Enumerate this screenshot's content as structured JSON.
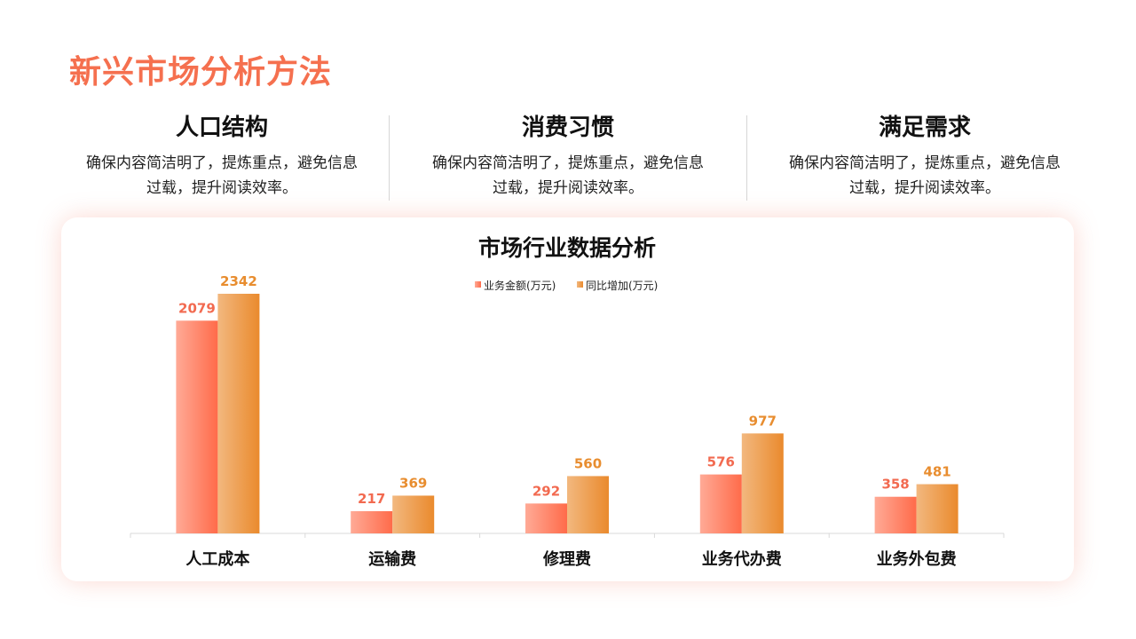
{
  "page_title": "新兴市场分析方法",
  "features": [
    {
      "heading": "人口结构",
      "text": "确保内容简洁明了，提炼重点，避免信息过载，提升阅读效率。"
    },
    {
      "heading": "消费习惯",
      "text": "确保内容简洁明了，提炼重点，避免信息过载，提升阅读效率。"
    },
    {
      "heading": "满足需求",
      "text": "确保内容简洁明了，提炼重点，避免信息过载，提升阅读效率。"
    }
  ],
  "colors": {
    "accent": "#f5704f",
    "series1_light": "#ffaa96",
    "series1_dark": "#ff6b4a",
    "series2_light": "#f2b87f",
    "series2_dark": "#ea8a2d",
    "label1": "#f26a50",
    "label2": "#e88d2f"
  },
  "chart_data": {
    "type": "bar",
    "title": "市场行业数据分析",
    "categories": [
      "人工成本",
      "运输费",
      "修理费",
      "业务代办费",
      "业务外包费"
    ],
    "series": [
      {
        "name": "业务金额(万元)",
        "values": [
          2079,
          217,
          292,
          576,
          358
        ]
      },
      {
        "name": "同比增加(万元)",
        "values": [
          2342,
          369,
          560,
          977,
          481
        ]
      }
    ],
    "ylim": [
      0,
      2342
    ],
    "grid": false,
    "legend_position": "top-center",
    "data_labels": true,
    "xlabel": "",
    "ylabel": ""
  }
}
